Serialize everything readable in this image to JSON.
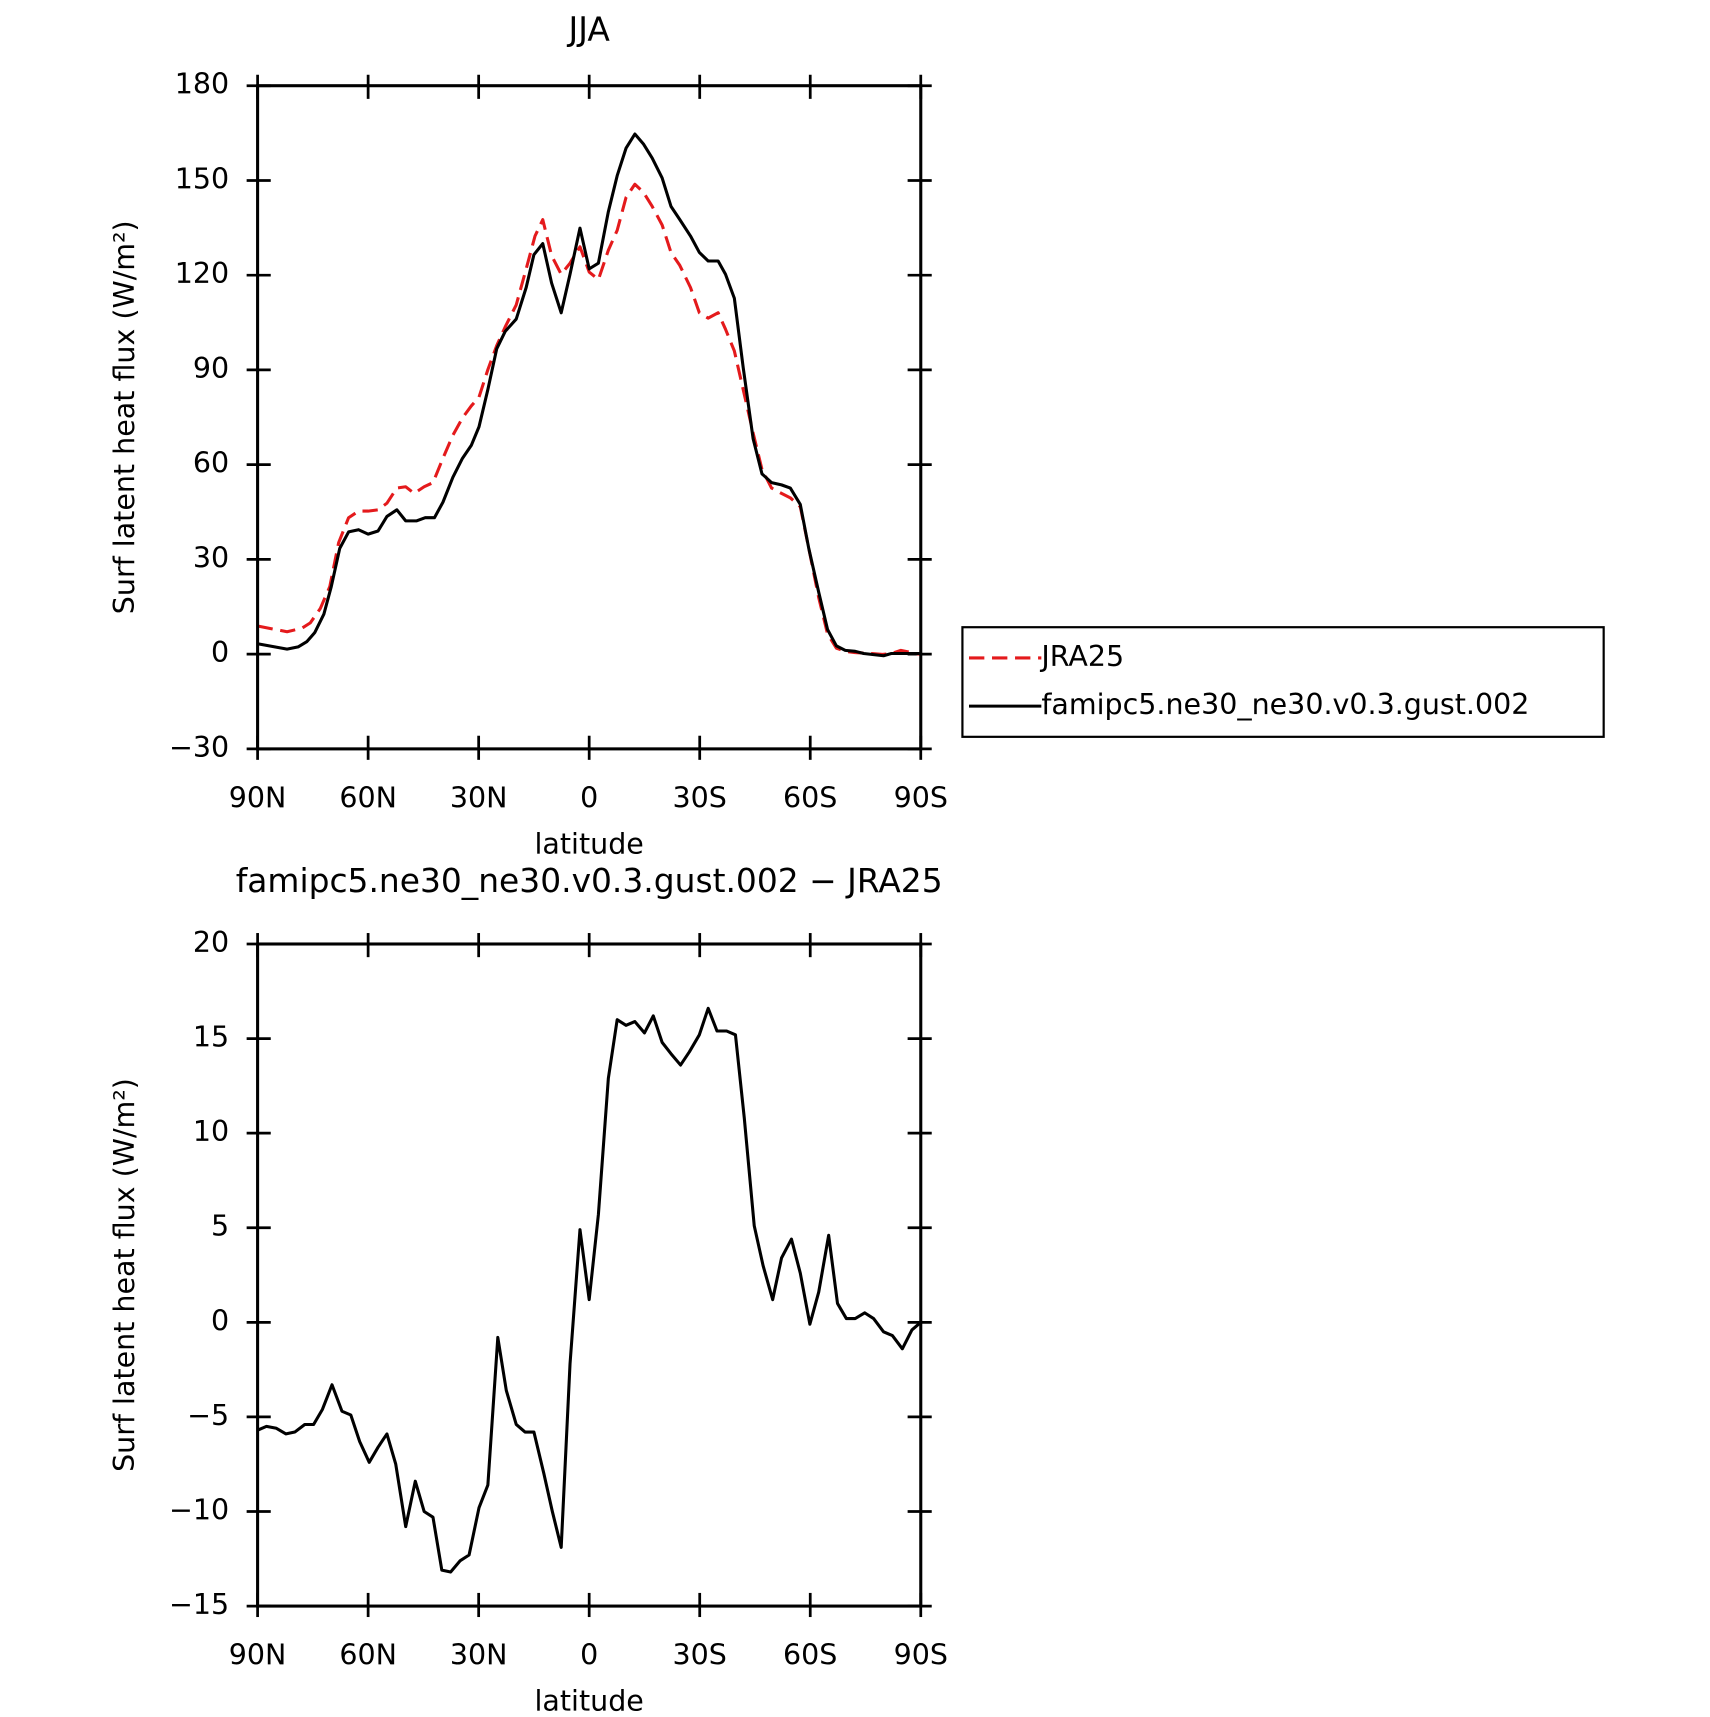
{
  "chart_data": [
    {
      "type": "line",
      "title": "JJA",
      "xlabel": "latitude",
      "ylabel": "Surf latent heat flux (W/m²)",
      "xlim": [
        90,
        -90
      ],
      "ylim": [
        -30,
        180
      ],
      "xticks": [
        {
          "value": 90,
          "label": "90N"
        },
        {
          "value": 60,
          "label": "60N"
        },
        {
          "value": 30,
          "label": "30N"
        },
        0,
        {
          "value": -30,
          "label": "30S"
        },
        {
          "value": -60,
          "label": "60S"
        },
        {
          "value": -90,
          "label": "90S"
        }
      ],
      "yticks": [
        {
          "value": -30,
          "label": "−30"
        },
        0,
        30,
        60,
        90,
        120,
        150,
        180
      ],
      "legend": "right",
      "series": [
        {
          "name": "JRA25",
          "color": "#e41a1c",
          "linestyle": "dashed",
          "x": [
            90,
            82,
            78,
            75.7,
            73,
            70.4,
            68,
            65.3,
            62.6,
            60,
            57.3,
            54.9,
            52.2,
            49.8,
            47.5,
            44.8,
            42.4,
            39.7,
            37,
            34.4,
            32,
            29.9,
            27.5,
            25.1,
            22.8,
            19.8,
            17.1,
            14.7,
            12.6,
            10.2,
            7.6,
            5.2,
            2.5,
            0,
            -2.5,
            -5.2,
            -7.6,
            -10,
            -12.4,
            -14.7,
            -17.1,
            -19.8,
            -22.2,
            -24.6,
            -27.5,
            -29.9,
            -32.3,
            -35,
            -37,
            -39.4,
            -41.8,
            -44.5,
            -46.9,
            -49.5,
            -52.2,
            -54.6,
            -57.3,
            -59.6,
            -62.3,
            -64.7,
            -67.1,
            -69.5,
            -72.2,
            -76.7,
            -79.6,
            -82,
            -84.6,
            -90
          ],
          "values": [
            8.9,
            7.1,
            8.2,
            9.9,
            14.4,
            21.4,
            35.3,
            43.2,
            45.3,
            45.3,
            45.7,
            47.8,
            52.6,
            53,
            50.9,
            53,
            54.3,
            62,
            69.3,
            74.8,
            78.6,
            81.4,
            90.1,
            97.7,
            103.6,
            110.6,
            122,
            132.4,
            137.6,
            126.2,
            120.3,
            123.8,
            129,
            121,
            118.6,
            127.9,
            134.2,
            144.6,
            148.8,
            146.3,
            141.8,
            135.9,
            127.2,
            123.1,
            116.1,
            108.1,
            106.4,
            108.1,
            102.9,
            96,
            83.8,
            70,
            58.5,
            52.6,
            50.9,
            49.5,
            46.7,
            33.5,
            17.9,
            6.4,
            1.9,
            0.9,
            0.5,
            0.2,
            -0.1,
            0.2,
            1.2,
            -0.1
          ]
        },
        {
          "name": "famipc5.ne30_ne30.v0.3.gust.002",
          "color": "#000000",
          "linestyle": "solid",
          "x": [
            90,
            82,
            79,
            76.6,
            74.5,
            72,
            70,
            67.7,
            65.3,
            62.6,
            60,
            57.3,
            54.9,
            52.2,
            49.8,
            46.9,
            44.5,
            42,
            39.7,
            37,
            34.4,
            32,
            29.9,
            27.5,
            25.1,
            22.8,
            19.8,
            17.1,
            15,
            12.6,
            10.2,
            7.6,
            5.2,
            2.5,
            0,
            -2.5,
            -5.2,
            -7.6,
            -10,
            -12.4,
            -14.7,
            -17.1,
            -19.8,
            -22.2,
            -24.6,
            -27.5,
            -29.9,
            -32.3,
            -35,
            -37,
            -39.4,
            -41.8,
            -44.5,
            -46.9,
            -49.5,
            -52.2,
            -54.6,
            -57.3,
            -59.6,
            -62.3,
            -64.7,
            -67.1,
            -69.5,
            -72.2,
            -74.5,
            -79.9,
            -82,
            -90
          ],
          "values": [
            3.3,
            1.6,
            2.3,
            4,
            6.8,
            12.7,
            21.4,
            33.5,
            38.7,
            39.4,
            38,
            39,
            43.6,
            45.7,
            42.2,
            42.2,
            43.2,
            43.2,
            48.1,
            56,
            62,
            66.1,
            72,
            83.8,
            96.7,
            102.2,
            106.1,
            116.1,
            126.5,
            130,
            117.5,
            108.1,
            120.3,
            134.9,
            122,
            123.8,
            140.1,
            151.5,
            160.2,
            164.7,
            161.6,
            157.1,
            150.8,
            141.8,
            137.6,
            132.4,
            127.2,
            124.5,
            124.5,
            120.3,
            112.7,
            90.8,
            68.2,
            57.1,
            54.3,
            53.6,
            52.6,
            47.4,
            33.5,
            19.6,
            7.8,
            2.6,
            1.2,
            0.9,
            0.2,
            -0.5,
            0.2,
            0.2
          ]
        }
      ]
    },
    {
      "type": "line",
      "title": "famipc5.ne30_ne30.v0.3.gust.002 − JRA25",
      "xlabel": "latitude",
      "ylabel": "Surf latent heat flux (W/m²)",
      "xlim": [
        90,
        -90
      ],
      "ylim": [
        -15,
        20
      ],
      "xticks": [
        {
          "value": 90,
          "label": "90N"
        },
        {
          "value": 60,
          "label": "60N"
        },
        {
          "value": 30,
          "label": "30N"
        },
        0,
        {
          "value": -30,
          "label": "30S"
        },
        {
          "value": -60,
          "label": "60S"
        },
        {
          "value": -90,
          "label": "90S"
        }
      ],
      "yticks": [
        {
          "value": -15,
          "label": "−15"
        },
        {
          "value": -10,
          "label": "−10"
        },
        {
          "value": -5,
          "label": "−5"
        },
        0,
        5,
        10,
        15,
        20
      ],
      "series": [
        {
          "color": "#000000",
          "linestyle": "solid",
          "x": [
            90,
            87.6,
            84.9,
            82.3,
            79.9,
            77.2,
            74.8,
            72.4,
            69.8,
            67.1,
            64.7,
            62.3,
            59.7,
            57.3,
            54.9,
            52.5,
            49.8,
            47.2,
            44.8,
            42.4,
            40,
            37.6,
            35,
            32.6,
            29.9,
            27.5,
            24.8,
            22.5,
            19.8,
            17.4,
            15,
            12.3,
            10,
            7.6,
            5.2,
            2.5,
            0,
            -2.5,
            -5.2,
            -7.6,
            -10,
            -12.4,
            -15,
            -17.4,
            -19.8,
            -22.2,
            -24.8,
            -27.2,
            -29.9,
            -32.3,
            -34.7,
            -37.3,
            -39.7,
            -42.1,
            -44.8,
            -47.2,
            -49.8,
            -52.2,
            -54.9,
            -57.3,
            -59.9,
            -62.3,
            -65,
            -67.4,
            -69.8,
            -72.2,
            -74.8,
            -77.2,
            -79.9,
            -82.3,
            -85,
            -87.6,
            -90
          ],
          "values": [
            -5.7,
            -5.5,
            -5.6,
            -5.9,
            -5.8,
            -5.4,
            -5.4,
            -4.6,
            -3.3,
            -4.7,
            -4.9,
            -6.3,
            -7.4,
            -6.6,
            -5.9,
            -7.5,
            -10.8,
            -8.4,
            -10,
            -10.3,
            -13.1,
            -13.2,
            -12.6,
            -12.3,
            -9.8,
            -8.6,
            -0.8,
            -3.6,
            -5.4,
            -5.8,
            -5.8,
            -8,
            -10,
            -11.9,
            -2.2,
            4.9,
            1.2,
            5.7,
            12.9,
            16,
            15.7,
            15.9,
            15.3,
            16.2,
            14.8,
            14.2,
            13.6,
            14.3,
            15.2,
            16.6,
            15.4,
            15.4,
            15.2,
            10.8,
            5.1,
            3,
            1.2,
            3.4,
            4.4,
            2.6,
            -0.1,
            1.6,
            4.6,
            1,
            0.2,
            0.2,
            0.5,
            0.2,
            -0.5,
            -0.7,
            -1.4,
            -0.4,
            0
          ]
        }
      ]
    }
  ]
}
